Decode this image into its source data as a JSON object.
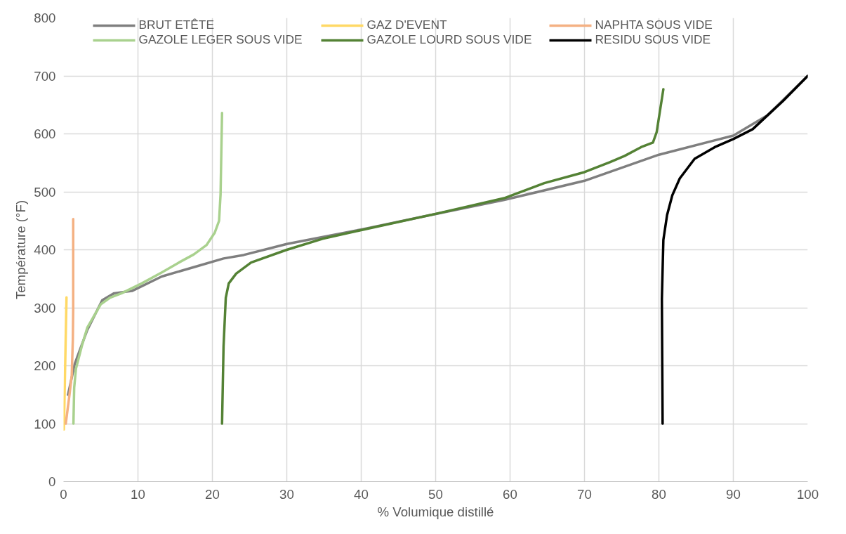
{
  "chart_data": {
    "type": "line",
    "xlabel": "% Volumique distillé",
    "ylabel": "Température (°F)",
    "xlim": [
      0,
      100
    ],
    "xticks": [
      0,
      10,
      20,
      30,
      40,
      50,
      60,
      70,
      80,
      90,
      100
    ],
    "ylim": [
      0,
      800
    ],
    "yticks": [
      0,
      100,
      200,
      300,
      400,
      500,
      600,
      700,
      800
    ],
    "grid": true,
    "legend": "top",
    "marker": "none",
    "line_style": "solid",
    "series": [
      {
        "name": "BRUT ETÊTE",
        "color": "#7f7f7f",
        "x": [
          0.6,
          1.5,
          3.2,
          5.2,
          6.8,
          9.2,
          13.2,
          17.5,
          21.5,
          24.2,
          30,
          40,
          48.2,
          59.2,
          70,
          80,
          90,
          94.6,
          100
        ],
        "values": [
          150,
          203,
          262,
          313,
          325,
          329,
          354,
          370,
          385,
          391,
          410,
          435,
          457,
          486,
          519,
          564,
          597,
          632,
          700
        ]
      },
      {
        "name": "GAZ D'EVENT",
        "color": "#ffd966",
        "x": [
          0.05,
          0.4
        ],
        "values": [
          90,
          318
        ]
      },
      {
        "name": "NAPHTA SOUS VIDE",
        "color": "#f4b183",
        "x": [
          0.3,
          0.8,
          1.1,
          1.25,
          1.3,
          1.3
        ],
        "values": [
          100,
          150,
          183,
          245,
          300,
          453
        ]
      },
      {
        "name": "GAZOLE LEGER SOUS VIDE",
        "color": "#a9d18e",
        "x": [
          1.33,
          1.43,
          1.67,
          2.5,
          3.2,
          5.0,
          6.2,
          7.8,
          10.5,
          13.2,
          15.5,
          17.5,
          19.2,
          20.3,
          20.9,
          21.1,
          21.3
        ],
        "values": [
          100,
          162,
          195,
          236,
          266,
          306,
          317,
          325,
          342,
          361,
          378,
          392,
          408,
          429,
          450,
          496,
          636
        ]
      },
      {
        "name": "GAZOLE LOURD SOUS VIDE",
        "color": "#548235",
        "x": [
          21.3,
          21.5,
          21.8,
          22.2,
          23.2,
          25.2,
          30,
          34.8,
          40,
          50,
          59.2,
          64.6,
          70,
          73.4,
          75.4,
          77.6,
          79.2,
          79.7,
          80.6
        ],
        "values": [
          100,
          233,
          317,
          342,
          359,
          378,
          400,
          419,
          434,
          462,
          489,
          515,
          534,
          551,
          562,
          577,
          585,
          603,
          677
        ]
      },
      {
        "name": "RESIDU SOUS VIDE",
        "color": "#000000",
        "x": [
          80.5,
          80.4,
          80.6,
          81.1,
          81.8,
          82.8,
          84.8,
          87.5,
          90,
          92.6,
          94.6,
          96.7,
          100
        ],
        "values": [
          100,
          315,
          417,
          460,
          494,
          523,
          557,
          577,
          591,
          608,
          632,
          657,
          700
        ]
      }
    ]
  }
}
